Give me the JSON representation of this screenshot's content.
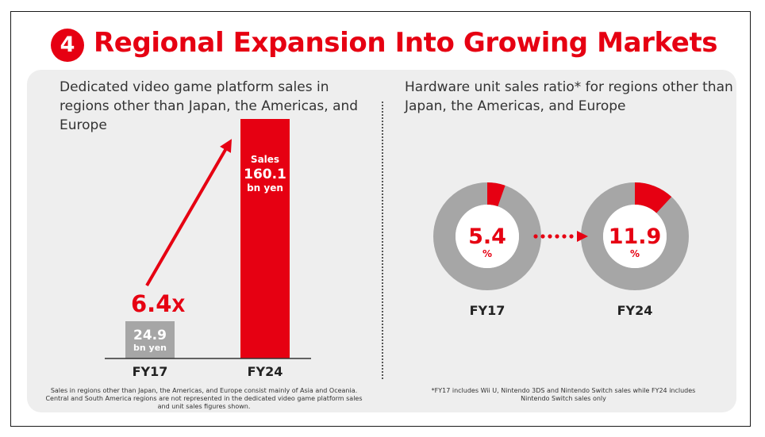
{
  "title": {
    "number": "4",
    "text": "Regional Expansion Into Growing Markets"
  },
  "left": {
    "heading": "Dedicated video game platform sales in regions other than Japan, the Americas, and Europe",
    "footnote": "Sales in regions other than Japan, the Americas, and Europe consist mainly of Asia and Oceania. Central and South America regions are not represented in the dedicated video game platform sales and unit sales figures shown."
  },
  "right": {
    "heading": "Hardware unit sales ratio* for regions other than Japan, the Americas, and Europe",
    "footnote": "*FY17 includes Wii U, Nintendo 3DS and Nintendo Switch sales while FY24 includes Nintendo Switch sales only"
  },
  "chart_data": [
    {
      "type": "bar",
      "categories": [
        "FY17",
        "FY24"
      ],
      "values": [
        24.9,
        160.1
      ],
      "value_labels": [
        [
          "24.9",
          "bn yen"
        ],
        [
          "Sales",
          "160.1",
          "bn yen"
        ]
      ],
      "colors": [
        "#a6a6a6",
        "#e60012"
      ],
      "growth_label": {
        "value": "6.4",
        "suffix": "X"
      }
    },
    {
      "type": "pie",
      "style": "donut",
      "categories": [
        "FY17",
        "FY24"
      ],
      "values": [
        5.4,
        11.9
      ],
      "value_labels": [
        "5.4",
        "11.9"
      ],
      "unit": "%",
      "accent_color": "#e60012",
      "base_color": "#a6a6a6"
    }
  ]
}
